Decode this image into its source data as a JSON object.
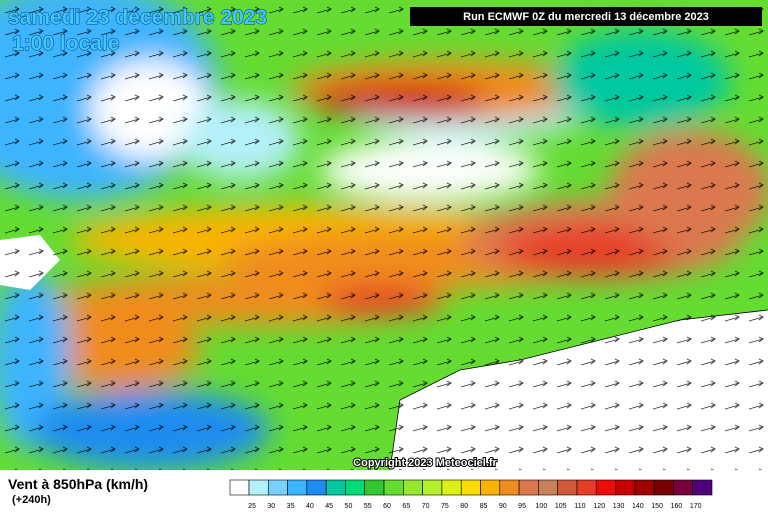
{
  "header": {
    "date": "samedi 23 décembre 2023",
    "time": "1:00 locale",
    "run": "Run ECMWF 0Z du mercredi 13 décembre 2023"
  },
  "map": {
    "copyright": "Copyright 2023 Meteociel.fr"
  },
  "footer": {
    "title": "Vent à 850hPa (km/h)",
    "lead": "(+240h)"
  },
  "scale": {
    "items": [
      {
        "value": 25,
        "color": "#b4f0fa"
      },
      {
        "value": 30,
        "color": "#78d2ff"
      },
      {
        "value": 35,
        "color": "#3cb4ff"
      },
      {
        "value": 40,
        "color": "#1e8cf0"
      },
      {
        "value": 45,
        "color": "#00c8a0"
      },
      {
        "value": 50,
        "color": "#00dc78"
      },
      {
        "value": 55,
        "color": "#32c832"
      },
      {
        "value": 60,
        "color": "#64dc32"
      },
      {
        "value": 65,
        "color": "#96e632"
      },
      {
        "value": 70,
        "color": "#b4f028"
      },
      {
        "value": 75,
        "color": "#dcf014"
      },
      {
        "value": 80,
        "color": "#fadc00"
      },
      {
        "value": 85,
        "color": "#fab400"
      },
      {
        "value": 90,
        "color": "#f08c1e"
      },
      {
        "value": 95,
        "color": "#dc7850"
      },
      {
        "value": 100,
        "color": "#c8825a"
      },
      {
        "value": 105,
        "color": "#d25a3c"
      },
      {
        "value": 110,
        "color": "#e63c28"
      },
      {
        "value": 120,
        "color": "#f00a0a"
      },
      {
        "value": 130,
        "color": "#c80000"
      },
      {
        "value": 140,
        "color": "#a00000"
      },
      {
        "value": 150,
        "color": "#780000"
      },
      {
        "value": 160,
        "color": "#78003c"
      },
      {
        "value": 170,
        "color": "#500078"
      }
    ]
  }
}
